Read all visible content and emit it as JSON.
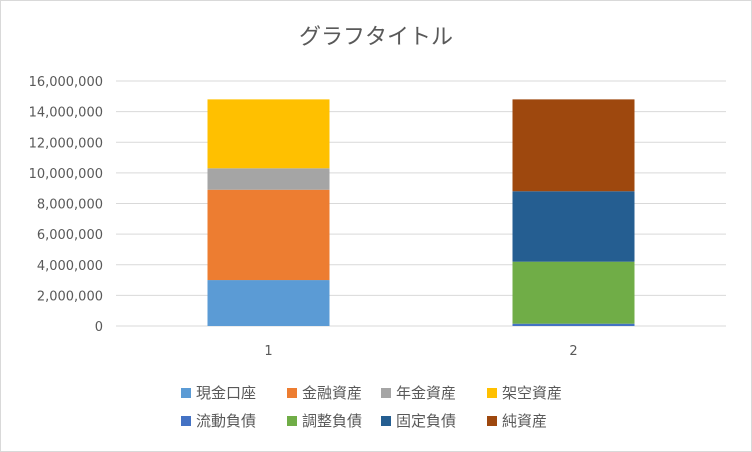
{
  "chart_data": {
    "type": "bar",
    "stacked": true,
    "title": "グラフタイトル",
    "categories": [
      "1",
      "2"
    ],
    "ylim": [
      0,
      16000000
    ],
    "yticks": [
      0,
      2000000,
      4000000,
      6000000,
      8000000,
      10000000,
      12000000,
      14000000,
      16000000
    ],
    "ytick_labels": [
      "0",
      "2,000,000",
      "4,000,000",
      "6,000,000",
      "8,000,000",
      "10,000,000",
      "12,000,000",
      "14,000,000",
      "16,000,000"
    ],
    "grid": true,
    "legend_position": "bottom",
    "series": [
      {
        "name": "現金口座",
        "color": "#5b9bd5",
        "values": [
          3000000,
          0
        ]
      },
      {
        "name": "金融資産",
        "color": "#ed7d31",
        "values": [
          5900000,
          0
        ]
      },
      {
        "name": "年金資産",
        "color": "#a5a5a5",
        "values": [
          1400000,
          0
        ]
      },
      {
        "name": "架空資産",
        "color": "#ffc000",
        "values": [
          4500000,
          0
        ]
      },
      {
        "name": "流動負債",
        "color": "#4472c4",
        "values": [
          0,
          150000
        ]
      },
      {
        "name": "調整負債",
        "color": "#70ad47",
        "values": [
          0,
          4050000
        ]
      },
      {
        "name": "固定負債",
        "color": "#255e91",
        "values": [
          0,
          4600000
        ]
      },
      {
        "name": "純資産",
        "color": "#9e480e",
        "values": [
          0,
          6000000
        ]
      }
    ]
  }
}
